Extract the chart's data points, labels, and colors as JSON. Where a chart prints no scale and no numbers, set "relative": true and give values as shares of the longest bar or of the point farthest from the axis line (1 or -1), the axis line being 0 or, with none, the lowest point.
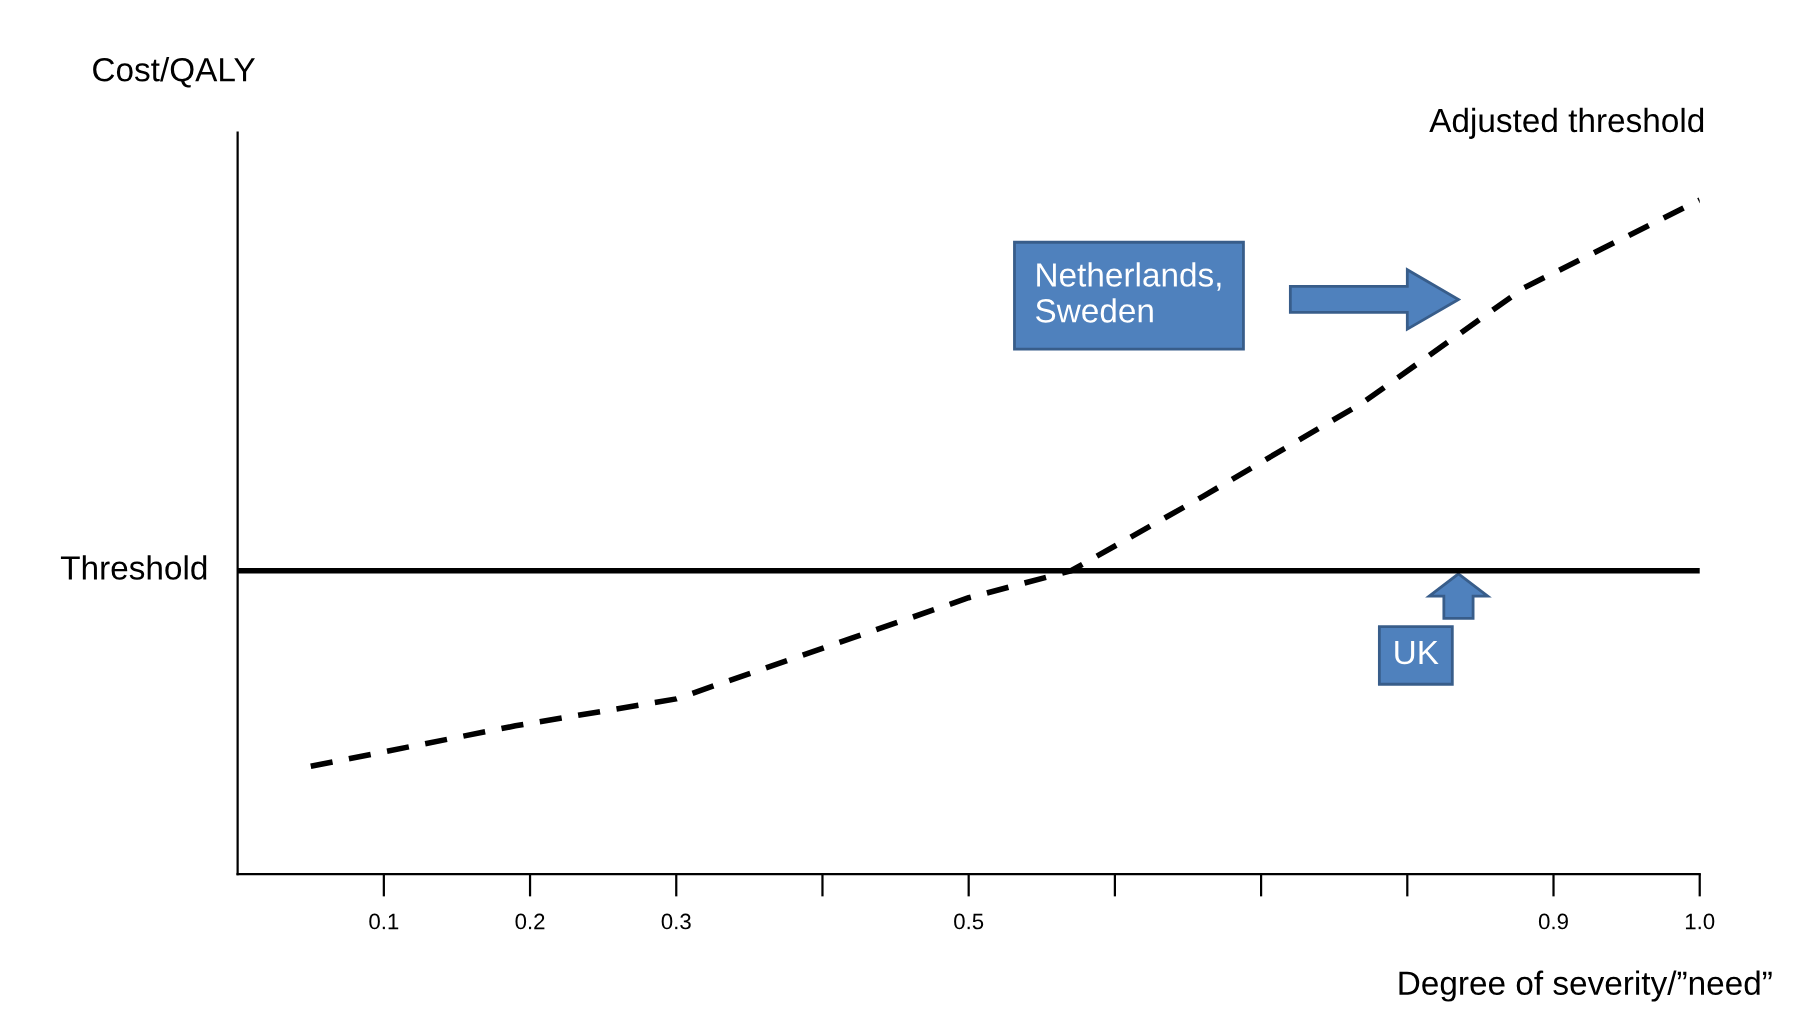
{
  "chart_data": {
    "type": "line",
    "relative": true,
    "xlabel": "Degree of severity/”need”",
    "ylabel": "Cost/QALY",
    "xlim": [
      0,
      1.0
    ],
    "xticks": [
      0.1,
      0.2,
      0.3,
      {
        "value": 0.4,
        "label": null
      },
      0.5,
      {
        "value": 0.6,
        "label": null
      },
      {
        "value": 0.7,
        "label": null
      },
      {
        "value": 0.8,
        "label": null
      },
      0.9,
      {
        "value": 1.0,
        "label": "1.0"
      }
    ],
    "x": [
      0.05,
      0.19,
      0.3,
      0.42,
      0.5,
      0.57,
      0.66,
      0.77,
      0.88,
      1.0
    ],
    "series": [
      {
        "name": "Adjusted threshold",
        "color": "#000000",
        "line_style": "dashed",
        "values": [
          0.16,
          0.22,
          0.26,
          0.35,
          0.41,
          0.45,
          0.56,
          0.7,
          0.87,
          1.0
        ]
      }
    ],
    "ref_lines": [
      {
        "axis": "y",
        "value": 0.45,
        "label": "Threshold",
        "color": "#000000",
        "line_style": "solid"
      }
    ],
    "annotations": [
      "Netherlands,\nSweden",
      "UK"
    ],
    "grid": false,
    "legend": false,
    "marker": "none"
  }
}
